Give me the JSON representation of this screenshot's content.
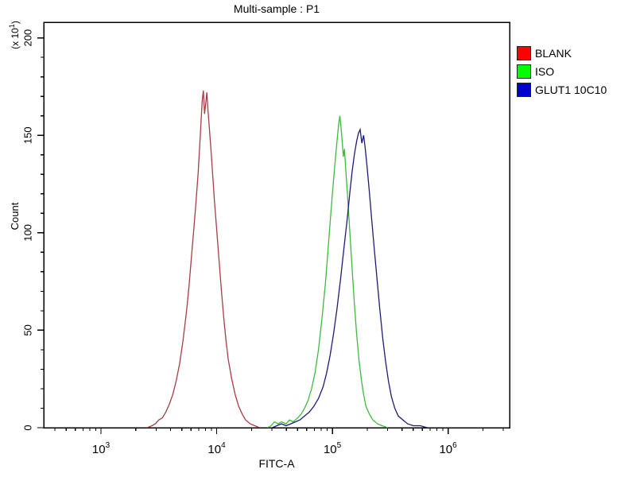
{
  "window": {
    "title": "Multi-sample : P1"
  },
  "legend": {
    "position": "top-right",
    "items": [
      {
        "label": "BLANK",
        "color": "#ff0000"
      },
      {
        "label": "ISO",
        "color": "#00ff00"
      },
      {
        "label": "GLUT1 10C10",
        "color": "#0000cc"
      }
    ]
  },
  "chart_data": {
    "type": "line",
    "subtype": "flow-cytometry-histogram-overlay",
    "title": "Multi-sample : P1",
    "xlabel": "FITC-A",
    "ylabel": "Count",
    "y_scale_note": {
      "prefix": "(x 10",
      "exp": "1",
      "suffix": ")"
    },
    "x_scale": "log10",
    "xlim_log10": [
      2.505,
      6.532
    ],
    "x_major_tick_exponents": [
      3,
      4,
      5,
      6
    ],
    "x_tick_base": "10",
    "ylim": [
      0,
      208
    ],
    "y_ticks": [
      0,
      50,
      100,
      150,
      200
    ],
    "y_tick_labels": [
      "0",
      "50",
      "100",
      "150",
      "200"
    ],
    "y_minor_step": 10,
    "grid": "off",
    "legend_position": "top-right",
    "frame_color": "#000000",
    "points_format": "[log10(FITC-A), count in units of x10^1]",
    "series": [
      {
        "name": "BLANK",
        "color": "#a83c46",
        "legend_color": "#ff0000",
        "peak_x_approx": 7900,
        "peak_count": 173,
        "points": [
          [
            3.4,
            0
          ],
          [
            3.44,
            1
          ],
          [
            3.47,
            2
          ],
          [
            3.5,
            4
          ],
          [
            3.53,
            5
          ],
          [
            3.56,
            8
          ],
          [
            3.59,
            12
          ],
          [
            3.62,
            17
          ],
          [
            3.65,
            24
          ],
          [
            3.68,
            33
          ],
          [
            3.71,
            45
          ],
          [
            3.74,
            60
          ],
          [
            3.76,
            72
          ],
          [
            3.78,
            86
          ],
          [
            3.8,
            100
          ],
          [
            3.82,
            115
          ],
          [
            3.84,
            131
          ],
          [
            3.855,
            146
          ],
          [
            3.865,
            157
          ],
          [
            3.875,
            168
          ],
          [
            3.885,
            173
          ],
          [
            3.895,
            161
          ],
          [
            3.905,
            166
          ],
          [
            3.915,
            172
          ],
          [
            3.925,
            163
          ],
          [
            3.935,
            155
          ],
          [
            3.95,
            143
          ],
          [
            3.965,
            130
          ],
          [
            3.98,
            117
          ],
          [
            4.0,
            102
          ],
          [
            4.02,
            86
          ],
          [
            4.04,
            71
          ],
          [
            4.06,
            57
          ],
          [
            4.08,
            45
          ],
          [
            4.1,
            35
          ],
          [
            4.13,
            25
          ],
          [
            4.16,
            17
          ],
          [
            4.19,
            11
          ],
          [
            4.22,
            7
          ],
          [
            4.25,
            4
          ],
          [
            4.29,
            2
          ],
          [
            4.33,
            1
          ],
          [
            4.37,
            0
          ]
        ]
      },
      {
        "name": "ISO",
        "color": "#3dbb3d",
        "legend_color": "#00ff00",
        "peak_x_approx": 116000,
        "peak_count": 160,
        "points": [
          [
            4.44,
            0
          ],
          [
            4.47,
            1
          ],
          [
            4.5,
            3
          ],
          [
            4.53,
            2
          ],
          [
            4.56,
            3
          ],
          [
            4.6,
            2
          ],
          [
            4.63,
            4
          ],
          [
            4.66,
            3
          ],
          [
            4.7,
            5
          ],
          [
            4.73,
            7
          ],
          [
            4.76,
            10
          ],
          [
            4.79,
            14
          ],
          [
            4.82,
            20
          ],
          [
            4.85,
            28
          ],
          [
            4.88,
            40
          ],
          [
            4.91,
            56
          ],
          [
            4.94,
            74
          ],
          [
            4.96,
            89
          ],
          [
            4.98,
            105
          ],
          [
            5.0,
            120
          ],
          [
            5.02,
            134
          ],
          [
            5.04,
            147
          ],
          [
            5.055,
            156
          ],
          [
            5.065,
            160
          ],
          [
            5.075,
            154
          ],
          [
            5.085,
            147
          ],
          [
            5.095,
            139
          ],
          [
            5.105,
            143
          ],
          [
            5.115,
            133
          ],
          [
            5.13,
            120
          ],
          [
            5.145,
            106
          ],
          [
            5.16,
            92
          ],
          [
            5.175,
            78
          ],
          [
            5.19,
            64
          ],
          [
            5.21,
            48
          ],
          [
            5.23,
            35
          ],
          [
            5.25,
            25
          ],
          [
            5.27,
            17
          ],
          [
            5.29,
            11
          ],
          [
            5.32,
            7
          ],
          [
            5.35,
            4
          ],
          [
            5.39,
            2
          ],
          [
            5.43,
            1
          ],
          [
            5.48,
            0
          ]
        ]
      },
      {
        "name": "GLUT1 10C10",
        "color": "#1c1c78",
        "legend_color": "#0000cc",
        "peak_x_approx": 174000,
        "peak_count": 153,
        "points": [
          [
            4.48,
            0
          ],
          [
            4.52,
            1
          ],
          [
            4.56,
            2
          ],
          [
            4.6,
            1
          ],
          [
            4.64,
            2
          ],
          [
            4.68,
            3
          ],
          [
            4.72,
            4
          ],
          [
            4.76,
            6
          ],
          [
            4.8,
            8
          ],
          [
            4.84,
            11
          ],
          [
            4.88,
            15
          ],
          [
            4.92,
            21
          ],
          [
            4.95,
            28
          ],
          [
            4.98,
            37
          ],
          [
            5.01,
            48
          ],
          [
            5.04,
            61
          ],
          [
            5.07,
            76
          ],
          [
            5.1,
            92
          ],
          [
            5.13,
            108
          ],
          [
            5.15,
            120
          ],
          [
            5.17,
            131
          ],
          [
            5.19,
            140
          ],
          [
            5.21,
            147
          ],
          [
            5.225,
            151
          ],
          [
            5.24,
            153
          ],
          [
            5.255,
            146
          ],
          [
            5.27,
            150
          ],
          [
            5.285,
            143
          ],
          [
            5.3,
            134
          ],
          [
            5.32,
            121
          ],
          [
            5.34,
            107
          ],
          [
            5.36,
            93
          ],
          [
            5.385,
            77
          ],
          [
            5.41,
            61
          ],
          [
            5.435,
            46
          ],
          [
            5.46,
            34
          ],
          [
            5.485,
            24
          ],
          [
            5.51,
            16
          ],
          [
            5.54,
            10
          ],
          [
            5.57,
            6
          ],
          [
            5.61,
            4
          ],
          [
            5.65,
            2
          ],
          [
            5.7,
            1
          ],
          [
            5.76,
            1
          ],
          [
            5.82,
            0
          ]
        ]
      }
    ]
  }
}
